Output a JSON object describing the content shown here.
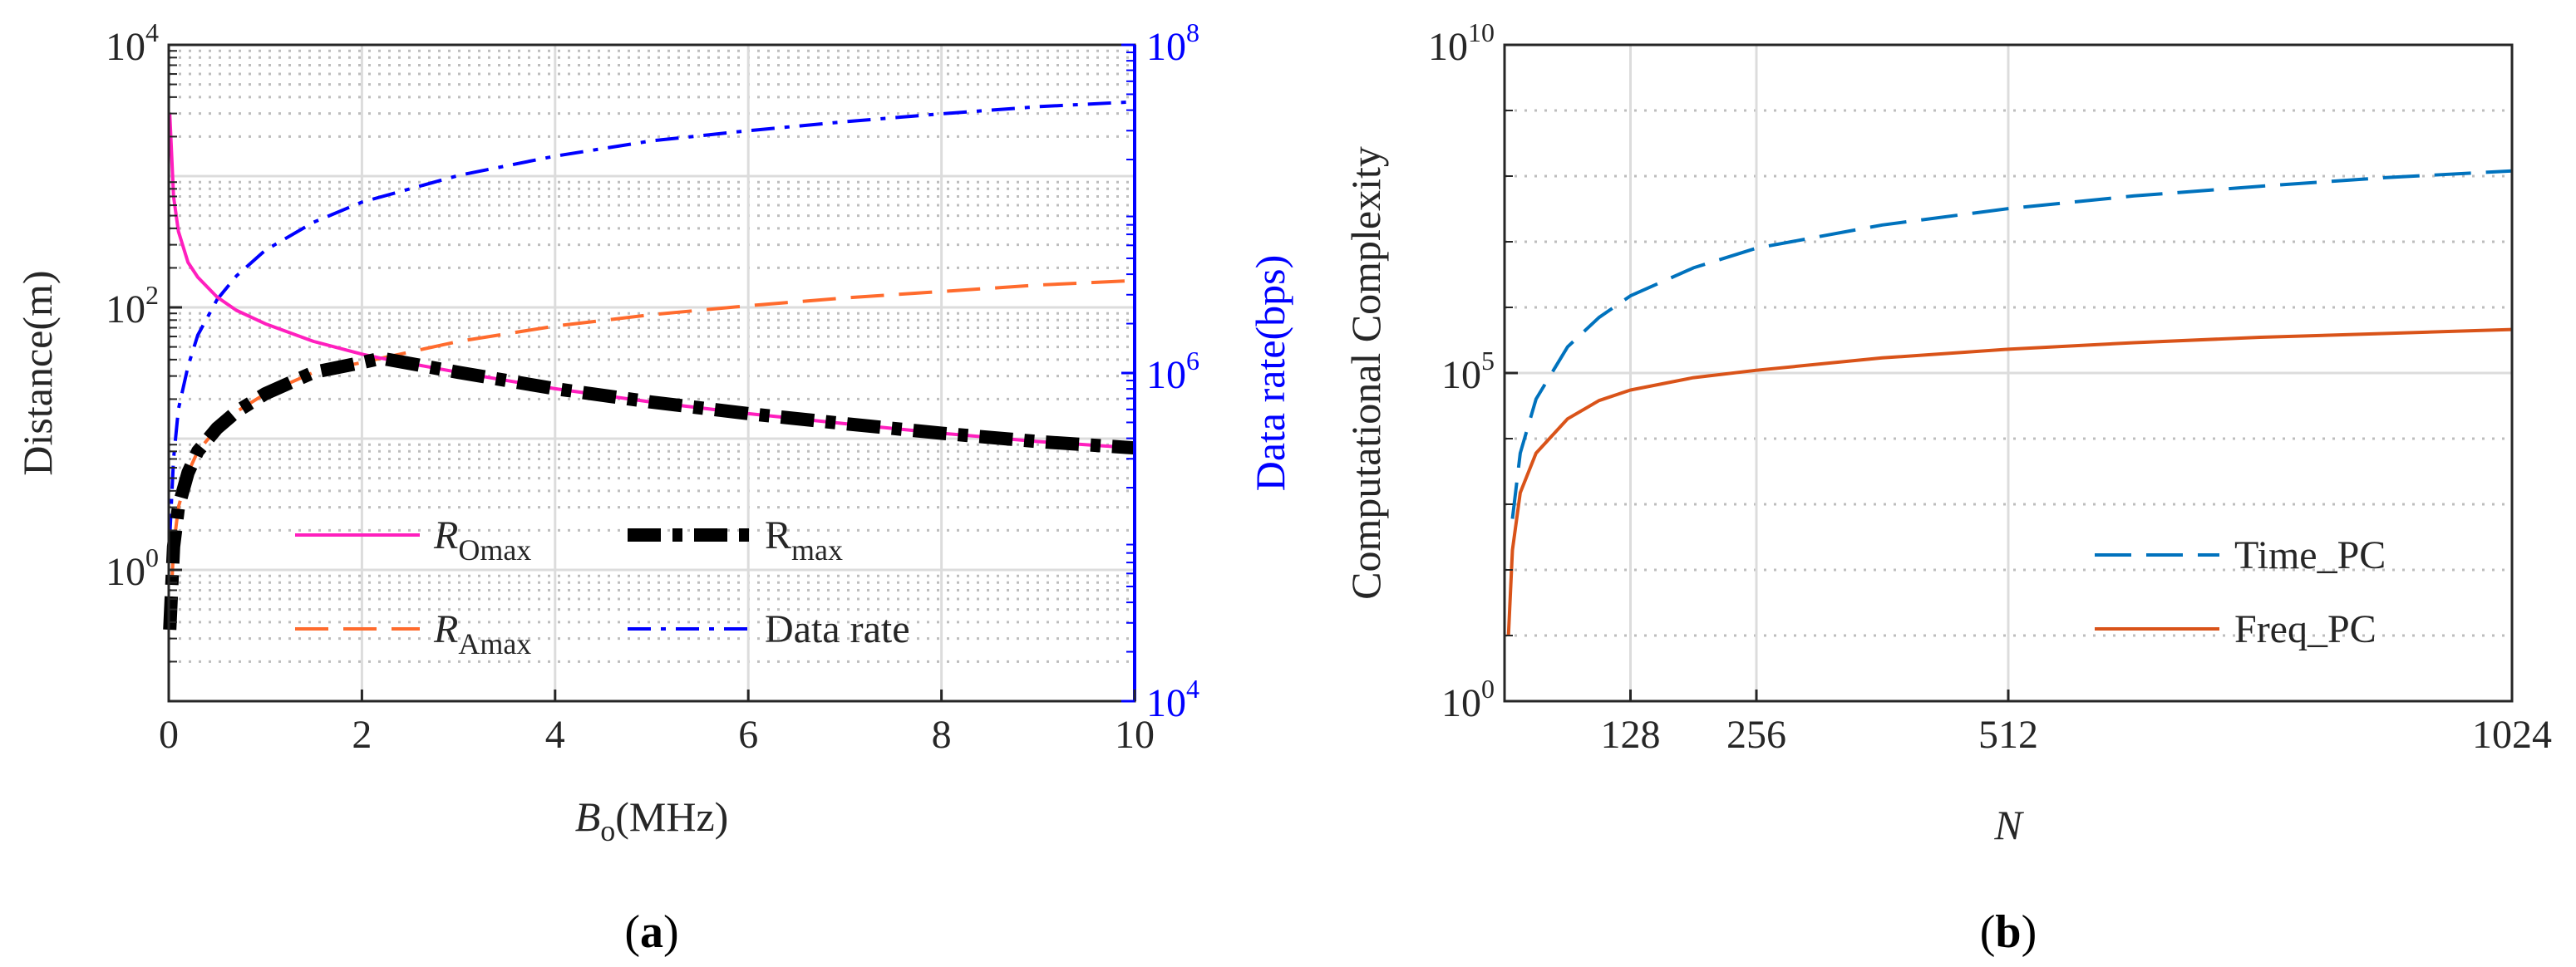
{
  "chart_data": [
    {
      "id": "a",
      "type": "line",
      "caption_letter": "a",
      "xlabel_symbol": "B",
      "xlabel_sub": "o",
      "xlabel_unit": "(MHz)",
      "ylabel_left": "Distance(m)",
      "ylabel_right": "Data rate(bps)",
      "xlim": [
        0,
        10
      ],
      "ylim_left": [
        0.1,
        10000
      ],
      "ylim_right": [
        10000,
        100000000
      ],
      "yscale_left": "log",
      "yscale_right": "log",
      "grid": true,
      "legend_position": "bottom-center",
      "colors": {
        "R_Omax": "#ff1fbe",
        "R_Amax": "#ff6b2d",
        "R_max": "#000000",
        "data_rate": "#0000ff",
        "right_axis": "#0000ff"
      },
      "x_ticks": [
        "0",
        "2",
        "4",
        "6",
        "8",
        "10"
      ],
      "y_left_ticks": [
        {
          "base": "10",
          "exp": "0",
          "value": 1
        },
        {
          "base": "10",
          "exp": "2",
          "value": 100
        },
        {
          "base": "10",
          "exp": "4",
          "value": 10000
        }
      ],
      "y_right_ticks": [
        {
          "base": "10",
          "exp": "4",
          "value": 10000
        },
        {
          "base": "10",
          "exp": "6",
          "value": 1000000
        },
        {
          "base": "10",
          "exp": "8",
          "value": 100000000
        }
      ],
      "legend": [
        {
          "key": "R_Omax",
          "main": "R",
          "sub": "Omax",
          "italic": true
        },
        {
          "key": "R_max",
          "main": "R",
          "sub": "max",
          "italic": false
        },
        {
          "key": "R_Amax",
          "main": "R",
          "sub": "Amax",
          "italic": true
        },
        {
          "key": "data_rate",
          "main": "Data rate",
          "sub": "",
          "italic": false
        }
      ],
      "series": [
        {
          "name": "R_Omax",
          "axis": "left",
          "style": "solid",
          "x": [
            0.01,
            0.05,
            0.1,
            0.2,
            0.3,
            0.5,
            0.7,
            1.0,
            1.5,
            2.0,
            2.2,
            3,
            4,
            5,
            6,
            7,
            8,
            9,
            10
          ],
          "y": [
            3000,
            700,
            380,
            220,
            170,
            120,
            95,
            75,
            55,
            44,
            41,
            32,
            24,
            19,
            15.5,
            13,
            11,
            9.5,
            8.5
          ]
        },
        {
          "name": "R_Amax",
          "axis": "left",
          "style": "dashed",
          "x": [
            0.01,
            0.05,
            0.1,
            0.2,
            0.3,
            0.5,
            0.7,
            1.0,
            1.5,
            2.0,
            2.2,
            3,
            4,
            5,
            6,
            7,
            8,
            9,
            10
          ],
          "y": [
            0.35,
            1.5,
            3.0,
            5.5,
            8,
            12,
            16,
            22,
            32,
            38,
            41,
            55,
            72,
            88,
            103,
            118,
            132,
            148,
            160
          ]
        },
        {
          "name": "R_max",
          "axis": "left",
          "style": "dash-dot-thick",
          "x": [
            0.01,
            0.05,
            0.1,
            0.2,
            0.3,
            0.5,
            0.7,
            1.0,
            1.5,
            2.0,
            2.2,
            3,
            4,
            5,
            6,
            7,
            8,
            9,
            10
          ],
          "y": [
            0.35,
            1.5,
            3.0,
            5.5,
            8,
            12,
            16,
            22,
            32,
            38,
            41,
            32,
            24,
            19,
            15.5,
            13,
            11,
            9.5,
            8.5
          ]
        },
        {
          "name": "Data rate",
          "axis": "right",
          "style": "dash-dot",
          "x": [
            0.01,
            0.05,
            0.1,
            0.2,
            0.3,
            0.5,
            0.7,
            1.0,
            1.5,
            2.0,
            3,
            4,
            5,
            6,
            7,
            8,
            9,
            10
          ],
          "y": [
            100000,
            300000,
            600000,
            1100000,
            1700000,
            2800000,
            3900000,
            5600000,
            8300000,
            11000000,
            16000000,
            21000000,
            26000000,
            30000000,
            34000000,
            38000000,
            42000000,
            45000000
          ]
        }
      ]
    },
    {
      "id": "b",
      "type": "line",
      "caption_letter": "b",
      "xlabel": "N",
      "ylabel": "Computational Complexity",
      "xlim": [
        0,
        1024
      ],
      "ylim": [
        1,
        10000000000
      ],
      "yscale": "log",
      "grid": true,
      "legend_position": "bottom-right",
      "colors": {
        "Time_PC": "#0072bd",
        "Freq_PC": "#d95319"
      },
      "x_ticks": [
        "128",
        "256",
        "512",
        "1024"
      ],
      "y_ticks": [
        {
          "base": "10",
          "exp": "0",
          "value": 1
        },
        {
          "base": "10",
          "exp": "5",
          "value": 100000
        },
        {
          "base": "10",
          "exp": "10",
          "value": 10000000000
        }
      ],
      "series": [
        {
          "name": "Time_PC",
          "style": "dashed",
          "x": [
            8,
            16,
            32,
            64,
            96,
            128,
            192,
            256,
            384,
            512,
            640,
            768,
            896,
            1024
          ],
          "y": [
            600,
            6000,
            40000,
            250000,
            700000,
            1500000,
            4000000,
            8000000,
            18000000,
            32000000,
            50000000,
            70000000,
            95000000,
            120000000
          ]
        },
        {
          "name": "Freq_PC",
          "style": "solid",
          "x": [
            4,
            8,
            16,
            32,
            64,
            96,
            128,
            192,
            256,
            384,
            512,
            640,
            768,
            896,
            1024
          ],
          "y": [
            10,
            200,
            1500,
            6000,
            20000,
            38000,
            55000,
            85000,
            110000,
            170000,
            230000,
            290000,
            350000,
            400000,
            460000
          ]
        }
      ]
    }
  ]
}
